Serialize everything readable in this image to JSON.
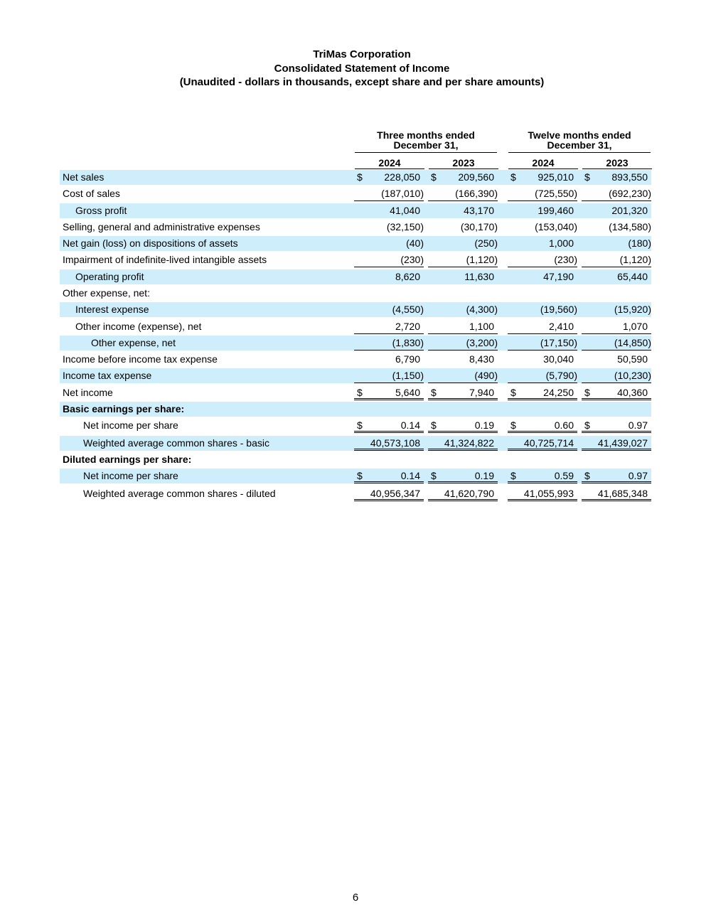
{
  "header": {
    "company": "TriMas Corporation",
    "statement": "Consolidated Statement of Income",
    "subtitle": "(Unaudited - dollars in thousands, except share and per share amounts)"
  },
  "columns": {
    "three_months_line1": "Three months ended",
    "three_months_line2": "December 31,",
    "twelve_months_line1": "Twelve months ended",
    "twelve_months_line2": "December 31,",
    "years": [
      "2024",
      "2023",
      "2024",
      "2023"
    ]
  },
  "rows": [
    {
      "label": "Net sales",
      "dollar": [
        "$",
        "$",
        "$",
        "$"
      ],
      "values": [
        "228,050",
        "209,560",
        "925,010",
        "893,550"
      ]
    },
    {
      "label": "Cost of sales",
      "values": [
        "(187,010)",
        "(166,390)",
        "(725,550)",
        "(692,230)"
      ]
    },
    {
      "label": "Gross profit",
      "values": [
        "41,040",
        "43,170",
        "199,460",
        "201,320"
      ]
    },
    {
      "label": "Selling, general and administrative expenses",
      "values": [
        "(32,150)",
        "(30,170)",
        "(153,040)",
        "(134,580)"
      ]
    },
    {
      "label": "Net gain (loss) on dispositions of assets",
      "values": [
        "(40)",
        "(250)",
        "1,000",
        "(180)"
      ]
    },
    {
      "label": "Impairment of indefinite-lived intangible assets",
      "values": [
        "(230)",
        "(1,120)",
        "(230)",
        "(1,120)"
      ]
    },
    {
      "label": "Operating profit",
      "values": [
        "8,620",
        "11,630",
        "47,190",
        "65,440"
      ]
    },
    {
      "label": "Other expense, net:",
      "values": [
        "",
        "",
        "",
        ""
      ]
    },
    {
      "label": "Interest expense",
      "values": [
        "(4,550)",
        "(4,300)",
        "(19,560)",
        "(15,920)"
      ]
    },
    {
      "label": "Other income (expense), net",
      "values": [
        "2,720",
        "1,100",
        "2,410",
        "1,070"
      ]
    },
    {
      "label": "Other expense, net",
      "values": [
        "(1,830)",
        "(3,200)",
        "(17,150)",
        "(14,850)"
      ]
    },
    {
      "label": "Income before income tax expense",
      "values": [
        "6,790",
        "8,430",
        "30,040",
        "50,590"
      ]
    },
    {
      "label": "Income tax expense",
      "values": [
        "(1,150)",
        "(490)",
        "(5,790)",
        "(10,230)"
      ]
    },
    {
      "label": "Net income",
      "dollar": [
        "$",
        "$",
        "$",
        "$"
      ],
      "values": [
        "5,640",
        "7,940",
        "24,250",
        "40,360"
      ]
    },
    {
      "label": "Basic earnings per share:",
      "values": [
        "",
        "",
        "",
        ""
      ]
    },
    {
      "label": "Net income per share",
      "dollar": [
        "$",
        "$",
        "$",
        "$"
      ],
      "values": [
        "0.14",
        "0.19",
        "0.60",
        "0.97"
      ]
    },
    {
      "label": "Weighted average common shares - basic",
      "values": [
        "40,573,108",
        "41,324,822",
        "40,725,714",
        "41,439,027"
      ]
    },
    {
      "label": "Diluted earnings per share:",
      "values": [
        "",
        "",
        "",
        ""
      ]
    },
    {
      "label": "Net income per share",
      "dollar": [
        "$",
        "$",
        "$",
        "$"
      ],
      "values": [
        "0.14",
        "0.19",
        "0.59",
        "0.97"
      ]
    },
    {
      "label": "Weighted average common shares - diluted",
      "values": [
        "40,956,347",
        "41,620,790",
        "41,055,993",
        "41,685,348"
      ]
    }
  ],
  "style": {
    "shade_color": "#cfeefc"
  },
  "footer": {
    "page_number": "6"
  }
}
